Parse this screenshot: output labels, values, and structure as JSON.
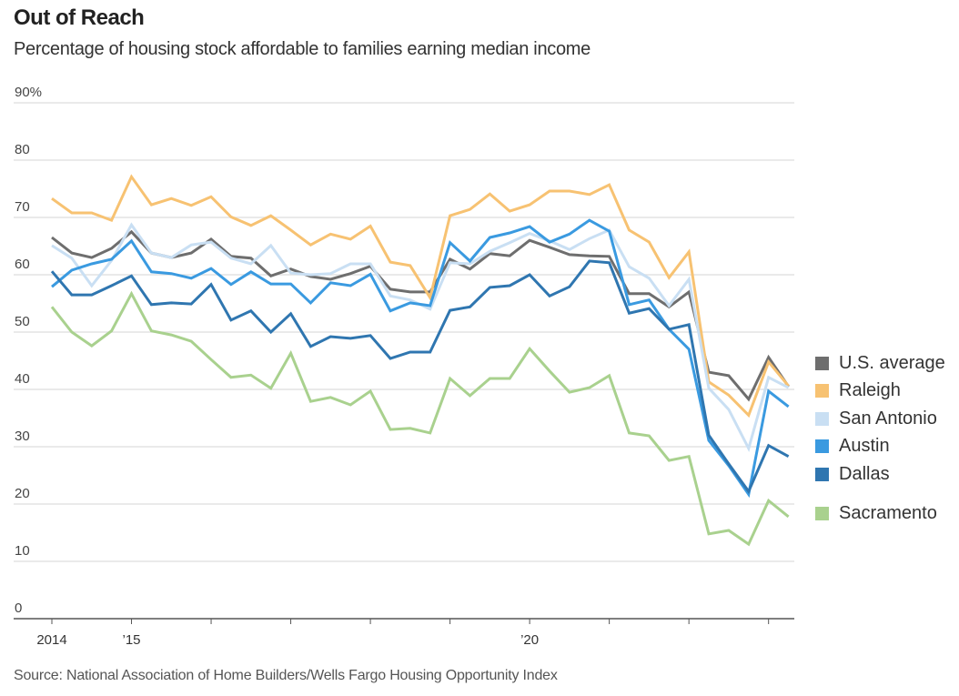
{
  "chart_data": {
    "type": "line",
    "title": "Out of Reach",
    "subtitle": "Percentage of housing stock affordable to families earning median income",
    "source": "Source: National Association of Home Builders/Wells Fargo Housing Opportunity Index",
    "xlabel": "",
    "ylabel": "",
    "ylim": [
      0,
      90
    ],
    "yticks": [
      {
        "value": 0,
        "label": "0"
      },
      {
        "value": 10,
        "label": "10"
      },
      {
        "value": 20,
        "label": "20"
      },
      {
        "value": 30,
        "label": "30"
      },
      {
        "value": 40,
        "label": "40"
      },
      {
        "value": 50,
        "label": "50"
      },
      {
        "value": 60,
        "label": "60"
      },
      {
        "value": 70,
        "label": "70"
      },
      {
        "value": 80,
        "label": "80"
      },
      {
        "value": 90,
        "label": "90%"
      }
    ],
    "xticks": [
      {
        "quarter_index": 0,
        "label": "2014"
      },
      {
        "quarter_index": 4,
        "label": "’15"
      },
      {
        "quarter_index": 8,
        "label": ""
      },
      {
        "quarter_index": 12,
        "label": ""
      },
      {
        "quarter_index": 16,
        "label": ""
      },
      {
        "quarter_index": 20,
        "label": ""
      },
      {
        "quarter_index": 24,
        "label": "’20"
      },
      {
        "quarter_index": 28,
        "label": ""
      },
      {
        "quarter_index": 32,
        "label": ""
      },
      {
        "quarter_index": 36,
        "label": ""
      }
    ],
    "x_unit": "quarter (2014 Q1 through 2023 Q2)",
    "grid": true,
    "legend_position": "right",
    "series": [
      {
        "name": "U.S. average",
        "color": "#6e6e6e",
        "values": [
          66.5,
          63.8,
          63.0,
          64.6,
          67.5,
          63.8,
          63.0,
          63.8,
          66.2,
          63.2,
          62.9,
          59.8,
          61.0,
          59.7,
          59.2,
          60.2,
          61.5,
          57.5,
          57.0,
          57.0,
          62.7,
          61.0,
          63.7,
          63.3,
          66.0,
          64.8,
          63.5,
          63.3,
          63.2,
          56.7,
          56.7,
          54.4,
          57.0,
          43.0,
          42.4,
          38.3,
          45.6,
          40.5
        ]
      },
      {
        "name": "Raleigh",
        "color": "#f7c272",
        "values": [
          73.3,
          70.8,
          70.8,
          69.5,
          77.1,
          72.2,
          73.3,
          72.1,
          73.6,
          70.1,
          68.6,
          70.3,
          67.8,
          65.2,
          67.1,
          66.2,
          68.5,
          62.2,
          61.6,
          56.0,
          70.3,
          71.4,
          74.1,
          71.1,
          72.2,
          74.6,
          74.6,
          74.0,
          75.7,
          67.8,
          65.7,
          59.5,
          64.0,
          41.3,
          39.0,
          35.5,
          44.8,
          40.6
        ]
      },
      {
        "name": "San Antonio",
        "color": "#c9dff3",
        "values": [
          65.1,
          62.9,
          58.1,
          62.5,
          68.7,
          63.8,
          63.0,
          65.2,
          65.7,
          62.9,
          61.9,
          65.1,
          60.3,
          60.0,
          60.2,
          61.9,
          61.9,
          56.3,
          55.6,
          54.0,
          62.1,
          61.9,
          64.1,
          65.6,
          67.2,
          65.9,
          64.4,
          66.3,
          67.8,
          61.4,
          59.4,
          54.6,
          59.2,
          40.2,
          36.5,
          29.7,
          42.1,
          40.3
        ]
      },
      {
        "name": "Austin",
        "color": "#3a9ae0",
        "values": [
          57.9,
          60.8,
          61.9,
          62.7,
          65.9,
          60.5,
          60.2,
          59.4,
          61.1,
          58.3,
          60.5,
          58.4,
          58.4,
          55.1,
          58.6,
          58.1,
          60.1,
          53.7,
          55.1,
          54.6,
          65.6,
          62.4,
          66.5,
          67.3,
          68.4,
          65.7,
          67.1,
          69.5,
          67.6,
          54.8,
          55.6,
          50.5,
          47.0,
          31.1,
          26.7,
          21.7,
          39.7,
          37.0
        ]
      },
      {
        "name": "Dallas",
        "color": "#2f76b0",
        "values": [
          60.6,
          56.5,
          56.5,
          58.1,
          59.8,
          54.8,
          55.1,
          54.9,
          58.3,
          52.1,
          53.7,
          50.0,
          53.2,
          47.5,
          49.2,
          48.9,
          49.4,
          45.4,
          46.5,
          46.5,
          53.8,
          54.4,
          57.8,
          58.1,
          60.0,
          56.3,
          57.9,
          62.4,
          62.1,
          53.3,
          54.1,
          50.5,
          51.3,
          32.0,
          27.0,
          22.2,
          30.2,
          28.3
        ]
      },
      {
        "name": "Sacramento",
        "color": "#a9d18e",
        "values": [
          54.4,
          50.0,
          47.6,
          50.2,
          56.7,
          50.2,
          49.5,
          48.4,
          45.2,
          42.1,
          42.5,
          40.2,
          46.3,
          37.9,
          38.6,
          37.3,
          39.7,
          33.0,
          33.2,
          32.4,
          41.9,
          38.9,
          41.9,
          41.9,
          47.1,
          43.2,
          39.5,
          40.3,
          42.4,
          32.4,
          31.9,
          27.6,
          28.3,
          14.8,
          15.4,
          13.0,
          20.6,
          17.8
        ]
      }
    ]
  },
  "legend": [
    {
      "name": "U.S. average",
      "color": "#6e6e6e"
    },
    {
      "name": "Raleigh",
      "color": "#f7c272"
    },
    {
      "name": "San Antonio",
      "color": "#c9dff3"
    },
    {
      "name": "Austin",
      "color": "#3a9ae0"
    },
    {
      "name": "Dallas",
      "color": "#2f76b0"
    },
    {
      "name": "Sacramento",
      "color": "#a9d18e"
    }
  ]
}
